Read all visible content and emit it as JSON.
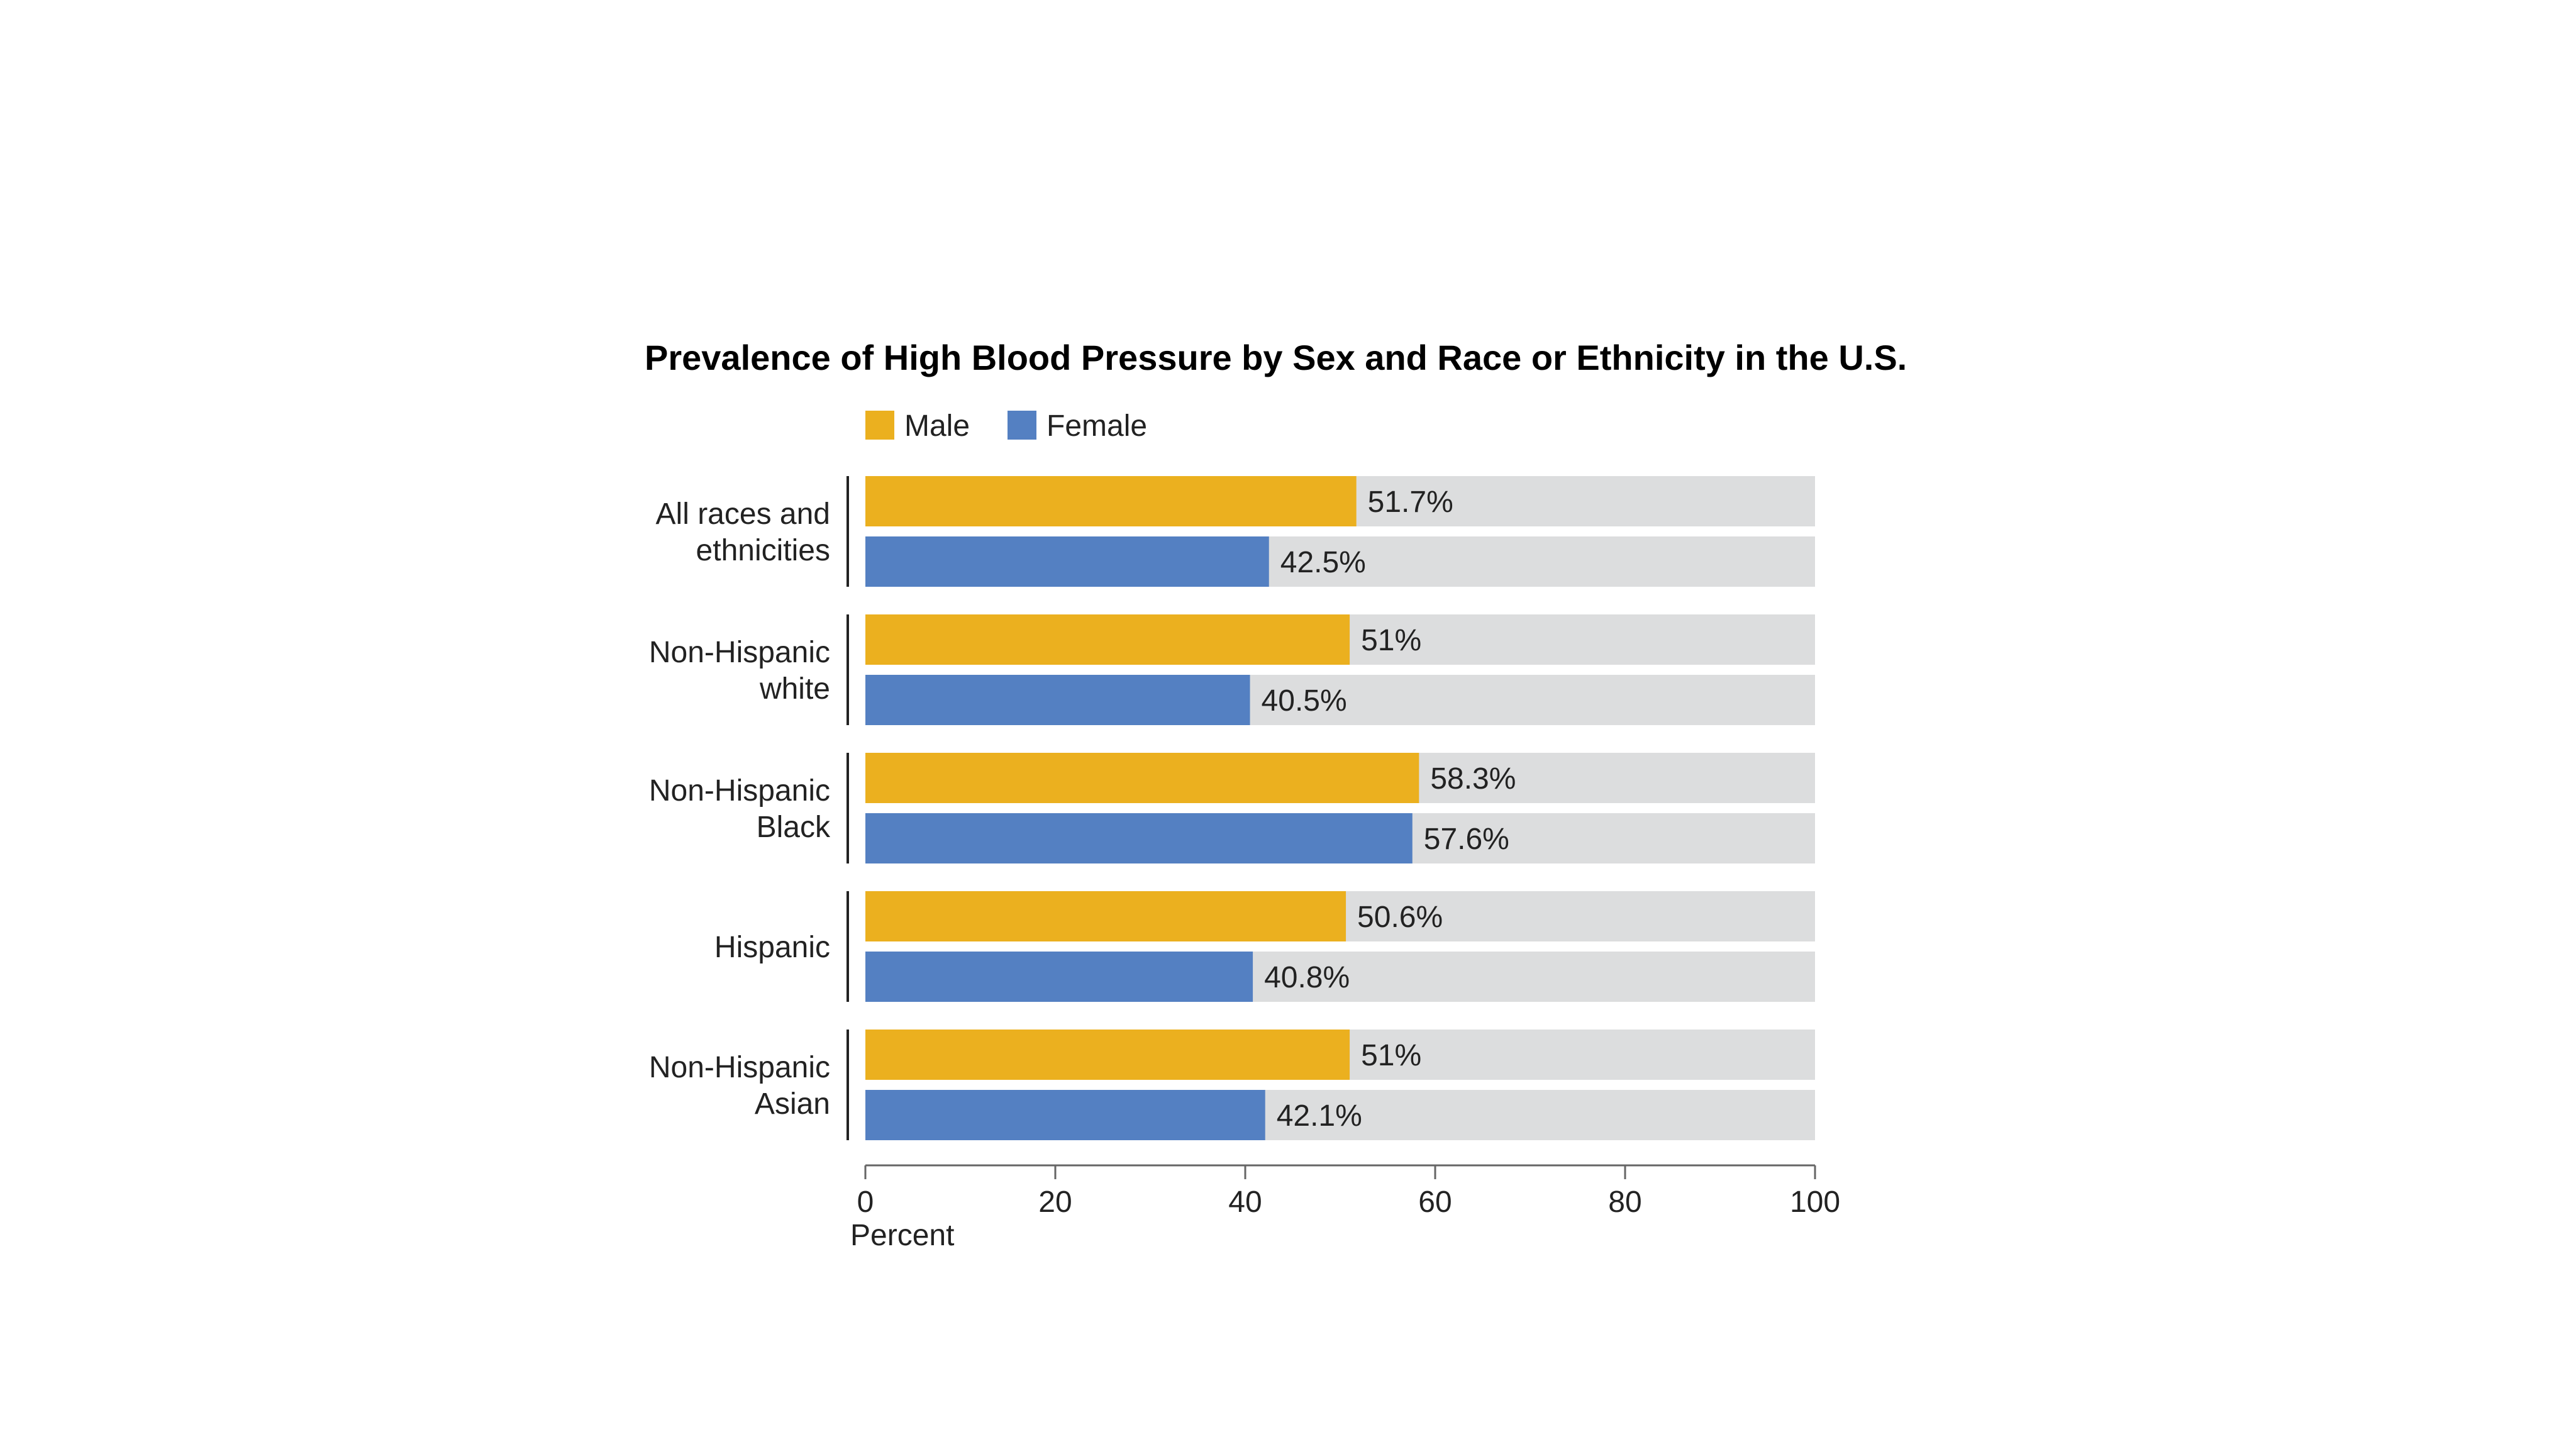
{
  "chart_data": {
    "type": "bar",
    "orientation": "horizontal",
    "title": "Prevalence of High Blood Pressure by Sex and Race or Ethnicity in the U.S.",
    "xlabel": "Percent",
    "ylabel": "",
    "xlim": [
      0,
      100
    ],
    "xticks": [
      "0",
      "20",
      "40",
      "60",
      "80",
      "100"
    ],
    "xtick_values": [
      0,
      20,
      40,
      60,
      80,
      100
    ],
    "legend_position": "top-left",
    "grid": false,
    "background_track": true,
    "categories": [
      [
        "All races and",
        "ethnicities"
      ],
      [
        "Non-Hispanic",
        "white"
      ],
      [
        "Non-Hispanic",
        "Black"
      ],
      [
        "Hispanic"
      ],
      [
        "Non-Hispanic",
        "Asian"
      ]
    ],
    "series": [
      {
        "name": "Male",
        "color": "#EBB01F",
        "values": [
          51.7,
          51,
          58.3,
          50.6,
          51
        ],
        "labels": [
          "51.7%",
          "51%",
          "58.3%",
          "50.6%",
          "51%"
        ]
      },
      {
        "name": "Female",
        "color": "#5480C2",
        "values": [
          42.5,
          40.5,
          57.6,
          40.8,
          42.1
        ],
        "labels": [
          "42.5%",
          "40.5%",
          "57.6%",
          "40.8%",
          "42.1%"
        ]
      }
    ],
    "colors": {
      "track": "#DCDDDE",
      "axis": "#666666",
      "text": "#222222"
    }
  }
}
